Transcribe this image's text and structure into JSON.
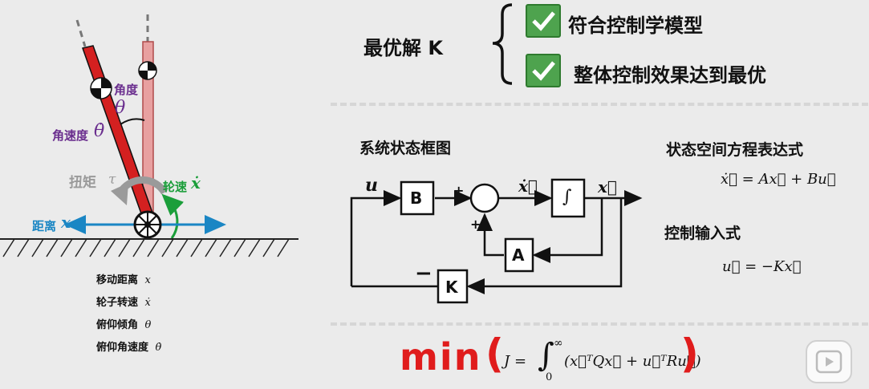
{
  "left": {
    "labels": {
      "angle": "角度",
      "theta": "θ",
      "angular_velocity": "角速度",
      "theta_dot": "θ̇",
      "torque": "扭矩",
      "tau": "τ",
      "wheel_speed": "轮速",
      "x_dot": "ẋ",
      "distance": "距离",
      "x": "x"
    },
    "states": [
      {
        "label": "移动距离",
        "symbol": "x"
      },
      {
        "label": "轮子转速",
        "symbol": "ẋ"
      },
      {
        "label": "俯仰倾角",
        "symbol": "θ"
      },
      {
        "label": "俯仰角速度",
        "symbol": "θ̇"
      }
    ]
  },
  "optimal": {
    "title": "最优解 K",
    "items": [
      "符合控制学模型",
      "整体控制效果达到最优"
    ]
  },
  "block_diagram": {
    "title": "系统状态框图",
    "u": "u",
    "B": "B",
    "A": "A",
    "K": "K",
    "integral": "∫",
    "plus_top": "+",
    "plus_bottom": "+",
    "minus": "−",
    "x_dot": "ẋ⃗",
    "x_vec": "x⃗"
  },
  "state_space": {
    "title": "状态空间方程表达式",
    "equation": "ẋ⃗ = Ax⃗ + Bu⃗"
  },
  "control_input": {
    "title": "控制输入式",
    "equation": "u⃗ = −Kx⃗"
  },
  "cost": {
    "min": "min",
    "paren_open": "(",
    "paren_close": ")",
    "J": "J =",
    "upper": "∞",
    "lower": "0",
    "integrand": "(x⃗ᵀQx⃗ + u⃗ᵀRu⃗)"
  },
  "colors": {
    "pendulum_red": "#d42020",
    "reference_pink": "#e8a0a0",
    "min_red": "#e01c1c",
    "check_green": "#4ea34e",
    "distance_blue": "#1a86c4",
    "wheel_green": "#1b9e3a",
    "label_purple": "#6a2e8e"
  },
  "icons": [
    "play-button-icon",
    "checkmark-icon"
  ]
}
